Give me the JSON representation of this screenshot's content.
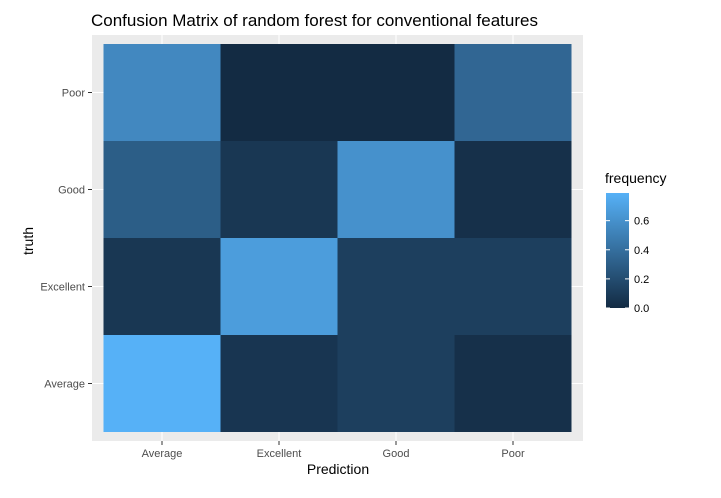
{
  "chart_data": {
    "type": "heatmap",
    "title": "Confusion Matrix of  random forest for conventional features",
    "xlabel": "Prediction",
    "ylabel": "truth",
    "x_categories": [
      "Average",
      "Excellent",
      "Good",
      "Poor"
    ],
    "y_categories": [
      "Average",
      "Excellent",
      "Good",
      "Poor"
    ],
    "values": [
      [
        0.79,
        0.06,
        0.12,
        0.03
      ],
      [
        0.07,
        0.67,
        0.12,
        0.12
      ],
      [
        0.3,
        0.07,
        0.6,
        0.03
      ],
      [
        0.55,
        0.0,
        0.0,
        0.35
      ]
    ],
    "legend": {
      "title": "frequency",
      "ticks": [
        "0.0",
        "0.2",
        "0.4",
        "0.6"
      ],
      "tick_values": [
        0.0,
        0.2,
        0.4,
        0.6
      ],
      "range": [
        0,
        0.79
      ],
      "position": "right"
    },
    "colors": {
      "low": "#132B43",
      "high": "#56B1F7",
      "panel_background": "#EBEBEB",
      "grid": "#FFFFFF"
    },
    "grid": true
  }
}
